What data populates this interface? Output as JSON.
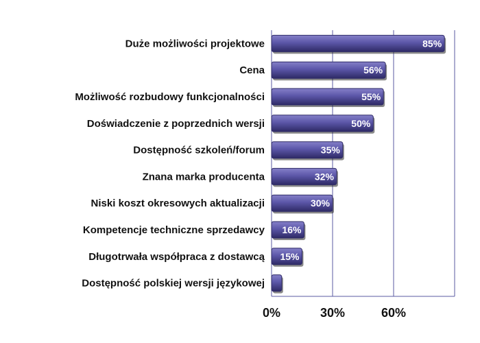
{
  "chart_data": {
    "type": "bar",
    "orientation": "horizontal",
    "categories": [
      "Duże możliwości projektowe",
      "Cena",
      "Możliwość rozbudowy funkcjonalności",
      "Doświadczenie z poprzednich wersji",
      "Dostępność szkoleń/forum",
      "Znana marka producenta",
      "Niski koszt okresowych aktualizacji",
      "Kompetencje techniczne sprzedawcy",
      "Długotrwała współpraca z dostawcą",
      "Dostępność polskiej wersji językowej"
    ],
    "values": [
      85,
      56,
      55,
      50,
      35,
      32,
      30,
      16,
      15,
      5
    ],
    "data_labels": [
      "85%",
      "56%",
      "55%",
      "50%",
      "35%",
      "32%",
      "30%",
      "16%",
      "15%",
      ""
    ],
    "xticks": [
      0,
      30,
      60
    ],
    "xtick_labels": [
      "0%",
      "30%",
      "60%"
    ],
    "xlim": [
      0,
      90
    ],
    "title": "",
    "xlabel": "",
    "ylabel": "",
    "grid": "vertical",
    "legend": "none",
    "colors": {
      "bar_fill": "#5b56a8",
      "bar_highlight": "#8580c8",
      "bar_shadow": "#2e2a66",
      "grid": "#5a5aa0",
      "text": "#111111",
      "value_text": "#ffffff"
    }
  }
}
